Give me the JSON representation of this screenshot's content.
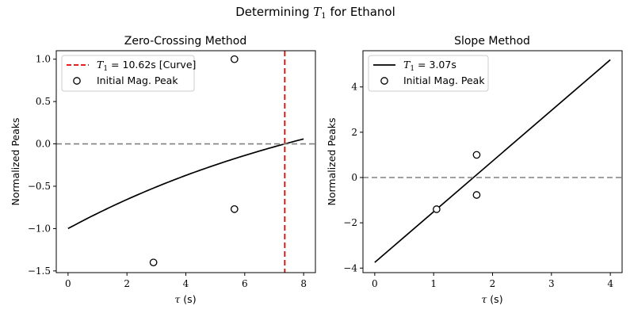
{
  "figure": {
    "title_prefix": "Determining ",
    "title_symbol": "T",
    "title_subscript": "1",
    "title_suffix": " for Ethanol"
  },
  "chart_data": [
    {
      "type": "line",
      "title": "Zero-Crossing Method",
      "xlabel_symbol": "τ",
      "xlabel_unit": " (s)",
      "ylabel": "Normalized Peaks",
      "xlim": [
        -0.4,
        8.4
      ],
      "ylim": [
        -1.52,
        1.1
      ],
      "xticks": [
        0,
        2,
        4,
        6,
        8
      ],
      "xtick_labels": [
        "0",
        "2",
        "4",
        "6",
        "8"
      ],
      "yticks": [
        -1.5,
        -1.0,
        -0.5,
        0.0,
        0.5,
        1.0
      ],
      "ytick_labels": [
        "−1.5",
        "−1.0",
        "−0.5",
        "0.0",
        "0.5",
        "1.0"
      ],
      "legend_position": "top-left",
      "series": [
        {
          "kind": "curve",
          "formula": "1 - 2*exp(-x/T1)",
          "T1": 10.62,
          "x_range": [
            0,
            8
          ],
          "color": "#000000"
        },
        {
          "kind": "vline",
          "name_symbol": "T",
          "name_subscript": "1",
          "name_value": " = 10.62s [Curve]",
          "x": 7.36,
          "color": "#e00000",
          "dash": "dashed"
        },
        {
          "kind": "scatter",
          "name": "Initial Mag. Peak",
          "x": [
            2.9,
            5.65,
            5.65
          ],
          "y": [
            -1.4,
            1.0,
            -0.77
          ],
          "marker": "open-circle"
        },
        {
          "kind": "hline",
          "y": 0,
          "color": "#808080",
          "dash": "dashed"
        }
      ]
    },
    {
      "type": "line",
      "title": "Slope Method",
      "xlabel_symbol": "τ",
      "xlabel_unit": " (s)",
      "ylabel": "Normalized Peaks",
      "xlim": [
        -0.2,
        4.2
      ],
      "ylim": [
        -4.2,
        5.6
      ],
      "xticks": [
        0,
        1,
        2,
        3,
        4
      ],
      "xtick_labels": [
        "0",
        "1",
        "2",
        "3",
        "4"
      ],
      "yticks": [
        -4,
        -2,
        0,
        2,
        4
      ],
      "ytick_labels": [
        "−4",
        "−2",
        "0",
        "2",
        "4"
      ],
      "legend_position": "top-left",
      "series": [
        {
          "kind": "line",
          "name_symbol": "T",
          "name_subscript": "1",
          "name_value": " = 3.07s",
          "x": [
            0,
            4
          ],
          "y": [
            -3.75,
            5.2
          ],
          "color": "#000000"
        },
        {
          "kind": "scatter",
          "name": "Initial Mag. Peak",
          "x": [
            1.05,
            1.73,
            1.73
          ],
          "y": [
            -1.4,
            1.0,
            -0.77
          ],
          "marker": "open-circle"
        },
        {
          "kind": "hline",
          "y": 0,
          "color": "#808080",
          "dash": "dashed"
        }
      ]
    }
  ]
}
